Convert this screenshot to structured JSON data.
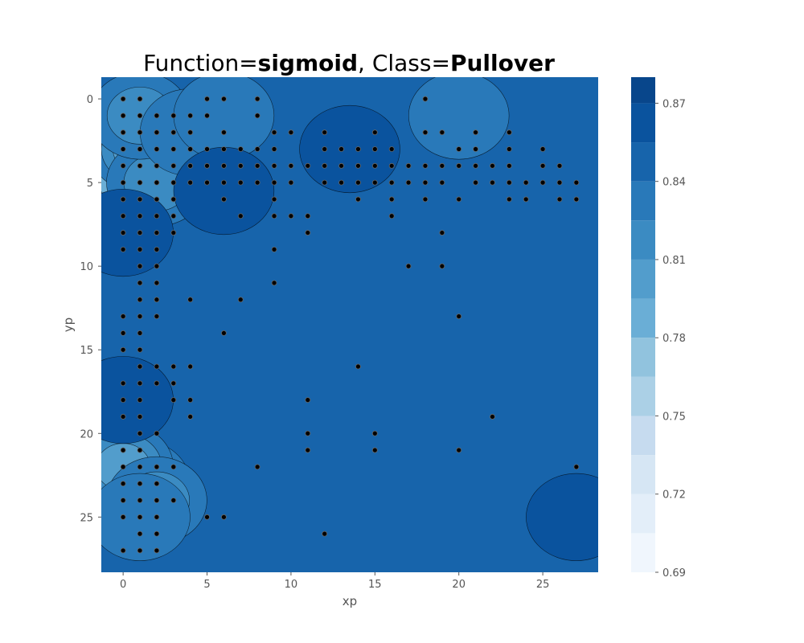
{
  "chart_data": {
    "type": "contour",
    "title": {
      "prefix": "Function=",
      "function": "sigmoid",
      "sep": ", Class=",
      "cls": "Pullover"
    },
    "xlabel": "xp",
    "ylabel": "yp",
    "xlim": [
      -1.3,
      28.3
    ],
    "ylim": [
      28.3,
      -1.3
    ],
    "y_inverted": true,
    "xticks": [
      0,
      5,
      10,
      15,
      20,
      25
    ],
    "yticks": [
      0,
      5,
      10,
      15,
      20,
      25
    ],
    "grid": false,
    "colormap": "Blues",
    "colorbar": {
      "range": [
        0.69,
        0.88
      ],
      "levels": [
        0.69,
        0.705,
        0.72,
        0.735,
        0.75,
        0.765,
        0.78,
        0.795,
        0.81,
        0.825,
        0.84,
        0.855,
        0.87,
        0.885
      ],
      "colors": [
        "#f0f6fd",
        "#e3eef9",
        "#d6e6f4",
        "#c6dbef",
        "#abd0e6",
        "#91c3de",
        "#6aaed6",
        "#529dcc",
        "#3b8bc2",
        "#2979b9",
        "#1764ab",
        "#0a539e",
        "#08468b",
        "#083471"
      ],
      "tick_labels": [
        0.69,
        0.72,
        0.75,
        0.78,
        0.81,
        0.84,
        0.87
      ]
    },
    "background_value": 0.845,
    "regions": [
      {
        "x": 1,
        "y": 4,
        "value": 0.76
      },
      {
        "x": 0,
        "y": 5,
        "value": 0.79
      },
      {
        "x": 1,
        "y": 3,
        "value": 0.8
      },
      {
        "x": 2,
        "y": 5,
        "value": 0.82
      },
      {
        "x": 1,
        "y": 1,
        "value": 0.82
      },
      {
        "x": 1,
        "y": 23,
        "value": 0.78
      },
      {
        "x": 0,
        "y": 22,
        "value": 0.8
      },
      {
        "x": 2,
        "y": 24,
        "value": 0.82
      },
      {
        "x": 1,
        "y": 25,
        "value": 0.83
      },
      {
        "x": 4,
        "y": 2,
        "value": 0.83
      },
      {
        "x": 6,
        "y": 1,
        "value": 0.835
      },
      {
        "x": 20,
        "y": 1,
        "value": 0.835
      },
      {
        "x": 0,
        "y": 8,
        "value": 0.865
      },
      {
        "x": 0,
        "y": 18,
        "value": 0.865
      },
      {
        "x": 27,
        "y": 25,
        "value": 0.86
      },
      {
        "x": 13.5,
        "y": 3,
        "value": 0.865
      },
      {
        "x": 6,
        "y": 5.5,
        "value": 0.86
      }
    ],
    "points": [
      [
        0,
        0
      ],
      [
        1,
        0
      ],
      [
        5,
        0
      ],
      [
        6,
        0
      ],
      [
        8,
        0
      ],
      [
        18,
        0
      ],
      [
        0,
        1
      ],
      [
        1,
        1
      ],
      [
        2,
        1
      ],
      [
        3,
        1
      ],
      [
        4,
        1
      ],
      [
        5,
        1
      ],
      [
        8,
        1
      ],
      [
        0,
        2
      ],
      [
        1,
        2
      ],
      [
        2,
        2
      ],
      [
        3,
        2
      ],
      [
        4,
        2
      ],
      [
        6,
        2
      ],
      [
        9,
        2
      ],
      [
        10,
        2
      ],
      [
        12,
        2
      ],
      [
        15,
        2
      ],
      [
        18,
        2
      ],
      [
        19,
        2
      ],
      [
        21,
        2
      ],
      [
        23,
        2
      ],
      [
        0,
        3
      ],
      [
        1,
        3
      ],
      [
        2,
        3
      ],
      [
        3,
        3
      ],
      [
        4,
        3
      ],
      [
        5,
        3
      ],
      [
        6,
        3
      ],
      [
        7,
        3
      ],
      [
        8,
        3
      ],
      [
        9,
        3
      ],
      [
        12,
        3
      ],
      [
        13,
        3
      ],
      [
        14,
        3
      ],
      [
        15,
        3
      ],
      [
        16,
        3
      ],
      [
        20,
        3
      ],
      [
        21,
        3
      ],
      [
        23,
        3
      ],
      [
        25,
        3
      ],
      [
        0,
        4
      ],
      [
        1,
        4
      ],
      [
        2,
        4
      ],
      [
        3,
        4
      ],
      [
        4,
        4
      ],
      [
        5,
        4
      ],
      [
        6,
        4
      ],
      [
        7,
        4
      ],
      [
        8,
        4
      ],
      [
        9,
        4
      ],
      [
        10,
        4
      ],
      [
        11,
        4
      ],
      [
        12,
        4
      ],
      [
        13,
        4
      ],
      [
        14,
        4
      ],
      [
        15,
        4
      ],
      [
        16,
        4
      ],
      [
        17,
        4
      ],
      [
        18,
        4
      ],
      [
        19,
        4
      ],
      [
        20,
        4
      ],
      [
        21,
        4
      ],
      [
        22,
        4
      ],
      [
        23,
        4
      ],
      [
        25,
        4
      ],
      [
        26,
        4
      ],
      [
        0,
        5
      ],
      [
        1,
        5
      ],
      [
        2,
        5
      ],
      [
        3,
        5
      ],
      [
        4,
        5
      ],
      [
        5,
        5
      ],
      [
        6,
        5
      ],
      [
        7,
        5
      ],
      [
        8,
        5
      ],
      [
        9,
        5
      ],
      [
        10,
        5
      ],
      [
        12,
        5
      ],
      [
        13,
        5
      ],
      [
        14,
        5
      ],
      [
        15,
        5
      ],
      [
        16,
        5
      ],
      [
        17,
        5
      ],
      [
        18,
        5
      ],
      [
        19,
        5
      ],
      [
        21,
        5
      ],
      [
        22,
        5
      ],
      [
        23,
        5
      ],
      [
        24,
        5
      ],
      [
        25,
        5
      ],
      [
        26,
        5
      ],
      [
        27,
        5
      ],
      [
        0,
        6
      ],
      [
        1,
        6
      ],
      [
        2,
        6
      ],
      [
        3,
        6
      ],
      [
        6,
        6
      ],
      [
        9,
        6
      ],
      [
        14,
        6
      ],
      [
        16,
        6
      ],
      [
        18,
        6
      ],
      [
        20,
        6
      ],
      [
        23,
        6
      ],
      [
        24,
        6
      ],
      [
        26,
        6
      ],
      [
        27,
        6
      ],
      [
        0,
        7
      ],
      [
        1,
        7
      ],
      [
        2,
        7
      ],
      [
        3,
        7
      ],
      [
        7,
        7
      ],
      [
        9,
        7
      ],
      [
        10,
        7
      ],
      [
        11,
        7
      ],
      [
        16,
        7
      ],
      [
        0,
        8
      ],
      [
        1,
        8
      ],
      [
        2,
        8
      ],
      [
        3,
        8
      ],
      [
        11,
        8
      ],
      [
        19,
        8
      ],
      [
        0,
        9
      ],
      [
        1,
        9
      ],
      [
        2,
        9
      ],
      [
        9,
        9
      ],
      [
        1,
        10
      ],
      [
        2,
        10
      ],
      [
        17,
        10
      ],
      [
        19,
        10
      ],
      [
        1,
        11
      ],
      [
        2,
        11
      ],
      [
        9,
        11
      ],
      [
        1,
        12
      ],
      [
        2,
        12
      ],
      [
        4,
        12
      ],
      [
        7,
        12
      ],
      [
        0,
        13
      ],
      [
        1,
        13
      ],
      [
        2,
        13
      ],
      [
        20,
        13
      ],
      [
        0,
        14
      ],
      [
        1,
        14
      ],
      [
        6,
        14
      ],
      [
        0,
        15
      ],
      [
        1,
        15
      ],
      [
        1,
        16
      ],
      [
        2,
        16
      ],
      [
        3,
        16
      ],
      [
        4,
        16
      ],
      [
        14,
        16
      ],
      [
        0,
        17
      ],
      [
        1,
        17
      ],
      [
        2,
        17
      ],
      [
        3,
        17
      ],
      [
        0,
        18
      ],
      [
        1,
        18
      ],
      [
        3,
        18
      ],
      [
        4,
        18
      ],
      [
        11,
        18
      ],
      [
        0,
        19
      ],
      [
        1,
        19
      ],
      [
        4,
        19
      ],
      [
        22,
        19
      ],
      [
        1,
        20
      ],
      [
        2,
        20
      ],
      [
        11,
        20
      ],
      [
        15,
        20
      ],
      [
        0,
        21
      ],
      [
        1,
        21
      ],
      [
        11,
        21
      ],
      [
        15,
        21
      ],
      [
        20,
        21
      ],
      [
        0,
        22
      ],
      [
        1,
        22
      ],
      [
        2,
        22
      ],
      [
        3,
        22
      ],
      [
        8,
        22
      ],
      [
        27,
        22
      ],
      [
        0,
        23
      ],
      [
        1,
        23
      ],
      [
        2,
        23
      ],
      [
        0,
        24
      ],
      [
        1,
        24
      ],
      [
        2,
        24
      ],
      [
        3,
        24
      ],
      [
        0,
        25
      ],
      [
        1,
        25
      ],
      [
        2,
        25
      ],
      [
        5,
        25
      ],
      [
        6,
        25
      ],
      [
        1,
        26
      ],
      [
        2,
        26
      ],
      [
        12,
        26
      ],
      [
        0,
        27
      ],
      [
        1,
        27
      ],
      [
        2,
        27
      ]
    ]
  }
}
